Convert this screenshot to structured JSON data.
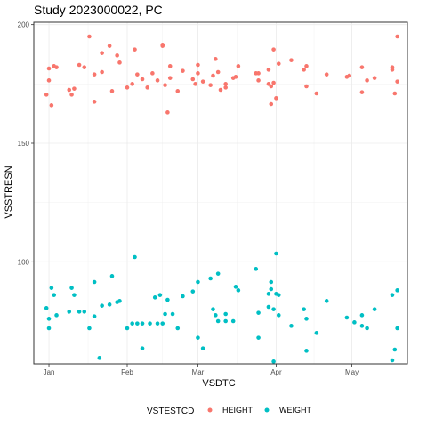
{
  "chart_data": {
    "type": "scatter",
    "title": "Study 2023000022, PC",
    "xlabel": "VSDTC",
    "ylabel": "VSSTRESN",
    "x_ticks": [
      "Jan",
      "Feb",
      "Mar",
      "Apr",
      "May"
    ],
    "x_tick_dates": [
      "2023-01-01",
      "2023-02-01",
      "2023-03-01",
      "2023-04-01",
      "2023-05-01"
    ],
    "xlim": [
      "2022-12-26",
      "2023-05-23"
    ],
    "ylim": [
      57,
      201
    ],
    "y_ticks": [
      100,
      150,
      200
    ],
    "grid": true,
    "legend": {
      "title": "VSTESTCD",
      "position": "bottom"
    },
    "series": [
      {
        "name": "HEIGHT",
        "color": "#F8766D",
        "points": [
          {
            "x": "2022-12-31",
            "y": 170.5
          },
          {
            "x": "2023-01-01",
            "y": 176.5
          },
          {
            "x": "2023-01-01",
            "y": 181.5
          },
          {
            "x": "2023-01-02",
            "y": 166
          },
          {
            "x": "2023-01-03",
            "y": 182.5
          },
          {
            "x": "2023-01-04",
            "y": 182
          },
          {
            "x": "2023-01-09",
            "y": 172.5
          },
          {
            "x": "2023-01-10",
            "y": 170.5
          },
          {
            "x": "2023-01-11",
            "y": 173
          },
          {
            "x": "2023-01-13",
            "y": 183
          },
          {
            "x": "2023-01-15",
            "y": 182
          },
          {
            "x": "2023-01-17",
            "y": 195
          },
          {
            "x": "2023-01-19",
            "y": 167.5
          },
          {
            "x": "2023-01-19",
            "y": 179
          },
          {
            "x": "2023-01-22",
            "y": 188
          },
          {
            "x": "2023-01-22",
            "y": 180
          },
          {
            "x": "2023-01-25",
            "y": 191
          },
          {
            "x": "2023-01-26",
            "y": 172
          },
          {
            "x": "2023-01-28",
            "y": 187
          },
          {
            "x": "2023-01-29",
            "y": 184
          },
          {
            "x": "2023-02-01",
            "y": 173.5
          },
          {
            "x": "2023-02-03",
            "y": 175
          },
          {
            "x": "2023-02-04",
            "y": 189.5
          },
          {
            "x": "2023-02-05",
            "y": 179
          },
          {
            "x": "2023-02-07",
            "y": 177
          },
          {
            "x": "2023-02-09",
            "y": 173.5
          },
          {
            "x": "2023-02-11",
            "y": 179.5
          },
          {
            "x": "2023-02-13",
            "y": 176.5
          },
          {
            "x": "2023-02-15",
            "y": 191.5
          },
          {
            "x": "2023-02-15",
            "y": 191
          },
          {
            "x": "2023-02-16",
            "y": 174.5
          },
          {
            "x": "2023-02-17",
            "y": 163
          },
          {
            "x": "2023-02-18",
            "y": 182.5
          },
          {
            "x": "2023-02-18",
            "y": 177.5
          },
          {
            "x": "2023-02-21",
            "y": 172
          },
          {
            "x": "2023-02-23",
            "y": 180.5
          },
          {
            "x": "2023-02-27",
            "y": 177
          },
          {
            "x": "2023-02-28",
            "y": 175
          },
          {
            "x": "2023-03-01",
            "y": 183
          },
          {
            "x": "2023-03-01",
            "y": 179.5
          },
          {
            "x": "2023-03-03",
            "y": 176
          },
          {
            "x": "2023-03-06",
            "y": 174.5
          },
          {
            "x": "2023-03-07",
            "y": 178.5
          },
          {
            "x": "2023-03-08",
            "y": 185.5
          },
          {
            "x": "2023-03-09",
            "y": 180
          },
          {
            "x": "2023-03-10",
            "y": 172.5
          },
          {
            "x": "2023-03-12",
            "y": 175
          },
          {
            "x": "2023-03-12",
            "y": 173.5
          },
          {
            "x": "2023-03-15",
            "y": 177.5
          },
          {
            "x": "2023-03-16",
            "y": 178
          },
          {
            "x": "2023-03-17",
            "y": 182.5
          },
          {
            "x": "2023-03-24",
            "y": 179.5
          },
          {
            "x": "2023-03-25",
            "y": 176.5
          },
          {
            "x": "2023-03-25",
            "y": 179.5
          },
          {
            "x": "2023-03-29",
            "y": 181
          },
          {
            "x": "2023-03-29",
            "y": 175
          },
          {
            "x": "2023-03-30",
            "y": 174
          },
          {
            "x": "2023-03-30",
            "y": 166.5
          },
          {
            "x": "2023-03-31",
            "y": 189.5
          },
          {
            "x": "2023-03-31",
            "y": 175.5
          },
          {
            "x": "2023-04-01",
            "y": 169
          },
          {
            "x": "2023-04-02",
            "y": 183.5
          },
          {
            "x": "2023-04-07",
            "y": 185
          },
          {
            "x": "2023-04-12",
            "y": 181
          },
          {
            "x": "2023-04-13",
            "y": 182.5
          },
          {
            "x": "2023-04-13",
            "y": 174
          },
          {
            "x": "2023-04-17",
            "y": 171
          },
          {
            "x": "2023-04-21",
            "y": 179
          },
          {
            "x": "2023-04-29",
            "y": 178
          },
          {
            "x": "2023-04-30",
            "y": 178.5
          },
          {
            "x": "2023-05-05",
            "y": 182
          },
          {
            "x": "2023-05-05",
            "y": 171.5
          },
          {
            "x": "2023-05-07",
            "y": 176.5
          },
          {
            "x": "2023-05-10",
            "y": 177.5
          },
          {
            "x": "2023-05-17",
            "y": 182
          },
          {
            "x": "2023-05-17",
            "y": 181
          },
          {
            "x": "2023-05-18",
            "y": 171
          },
          {
            "x": "2023-05-19",
            "y": 176
          },
          {
            "x": "2023-05-19",
            "y": 195
          }
        ]
      },
      {
        "name": "WEIGHT",
        "color": "#00BFC4",
        "points": [
          {
            "x": "2022-12-31",
            "y": 80.5
          },
          {
            "x": "2023-01-01",
            "y": 72
          },
          {
            "x": "2023-01-01",
            "y": 76
          },
          {
            "x": "2023-01-02",
            "y": 89
          },
          {
            "x": "2023-01-03",
            "y": 86
          },
          {
            "x": "2023-01-04",
            "y": 77.5
          },
          {
            "x": "2023-01-09",
            "y": 79
          },
          {
            "x": "2023-01-10",
            "y": 89
          },
          {
            "x": "2023-01-11",
            "y": 86
          },
          {
            "x": "2023-01-13",
            "y": 79
          },
          {
            "x": "2023-01-15",
            "y": 79
          },
          {
            "x": "2023-01-17",
            "y": 72
          },
          {
            "x": "2023-01-19",
            "y": 77
          },
          {
            "x": "2023-01-19",
            "y": 91.5
          },
          {
            "x": "2023-01-21",
            "y": 59.5
          },
          {
            "x": "2023-01-22",
            "y": 81.5
          },
          {
            "x": "2023-01-25",
            "y": 82
          },
          {
            "x": "2023-01-26",
            "y": 94
          },
          {
            "x": "2023-01-28",
            "y": 83
          },
          {
            "x": "2023-01-29",
            "y": 83.5
          },
          {
            "x": "2023-02-01",
            "y": 72
          },
          {
            "x": "2023-02-03",
            "y": 74
          },
          {
            "x": "2023-02-04",
            "y": 102
          },
          {
            "x": "2023-02-05",
            "y": 74
          },
          {
            "x": "2023-02-07",
            "y": 63.5
          },
          {
            "x": "2023-02-07",
            "y": 74
          },
          {
            "x": "2023-02-10",
            "y": 74
          },
          {
            "x": "2023-02-12",
            "y": 85
          },
          {
            "x": "2023-02-13",
            "y": 74
          },
          {
            "x": "2023-02-14",
            "y": 86
          },
          {
            "x": "2023-02-15",
            "y": 74
          },
          {
            "x": "2023-02-16",
            "y": 78
          },
          {
            "x": "2023-02-17",
            "y": 84
          },
          {
            "x": "2023-02-19",
            "y": 78
          },
          {
            "x": "2023-02-21",
            "y": 72
          },
          {
            "x": "2023-02-23",
            "y": 85.5
          },
          {
            "x": "2023-02-27",
            "y": 87.5
          },
          {
            "x": "2023-03-01",
            "y": 91.5
          },
          {
            "x": "2023-03-01",
            "y": 68
          },
          {
            "x": "2023-03-03",
            "y": 63.5
          },
          {
            "x": "2023-03-06",
            "y": 93
          },
          {
            "x": "2023-03-07",
            "y": 80
          },
          {
            "x": "2023-03-08",
            "y": 77.5
          },
          {
            "x": "2023-03-09",
            "y": 95
          },
          {
            "x": "2023-03-09",
            "y": 75
          },
          {
            "x": "2023-03-12",
            "y": 78
          },
          {
            "x": "2023-03-12",
            "y": 75
          },
          {
            "x": "2023-03-15",
            "y": 75
          },
          {
            "x": "2023-03-16",
            "y": 89.5
          },
          {
            "x": "2023-03-17",
            "y": 88
          },
          {
            "x": "2023-03-24",
            "y": 97
          },
          {
            "x": "2023-03-25",
            "y": 78.5
          },
          {
            "x": "2023-03-25",
            "y": 68
          },
          {
            "x": "2023-03-29",
            "y": 86.5
          },
          {
            "x": "2023-03-29",
            "y": 81
          },
          {
            "x": "2023-03-30",
            "y": 91.5
          },
          {
            "x": "2023-03-30",
            "y": 88.5
          },
          {
            "x": "2023-03-31",
            "y": 58
          },
          {
            "x": "2023-03-31",
            "y": 80
          },
          {
            "x": "2023-04-01",
            "y": 103.5
          },
          {
            "x": "2023-04-01",
            "y": 86.5
          },
          {
            "x": "2023-04-02",
            "y": 86
          },
          {
            "x": "2023-04-02",
            "y": 77.5
          },
          {
            "x": "2023-04-07",
            "y": 73
          },
          {
            "x": "2023-04-12",
            "y": 80
          },
          {
            "x": "2023-04-13",
            "y": 76
          },
          {
            "x": "2023-04-13",
            "y": 62.5
          },
          {
            "x": "2023-04-17",
            "y": 70
          },
          {
            "x": "2023-04-21",
            "y": 83.5
          },
          {
            "x": "2023-04-29",
            "y": 76.5
          },
          {
            "x": "2023-05-02",
            "y": 74.5
          },
          {
            "x": "2023-05-05",
            "y": 77.5
          },
          {
            "x": "2023-05-05",
            "y": 73
          },
          {
            "x": "2023-05-07",
            "y": 72
          },
          {
            "x": "2023-05-10",
            "y": 80
          },
          {
            "x": "2023-05-17",
            "y": 86
          },
          {
            "x": "2023-05-17",
            "y": 58.5
          },
          {
            "x": "2023-05-18",
            "y": 63
          },
          {
            "x": "2023-05-19",
            "y": 88
          },
          {
            "x": "2023-05-19",
            "y": 72
          }
        ]
      }
    ]
  }
}
